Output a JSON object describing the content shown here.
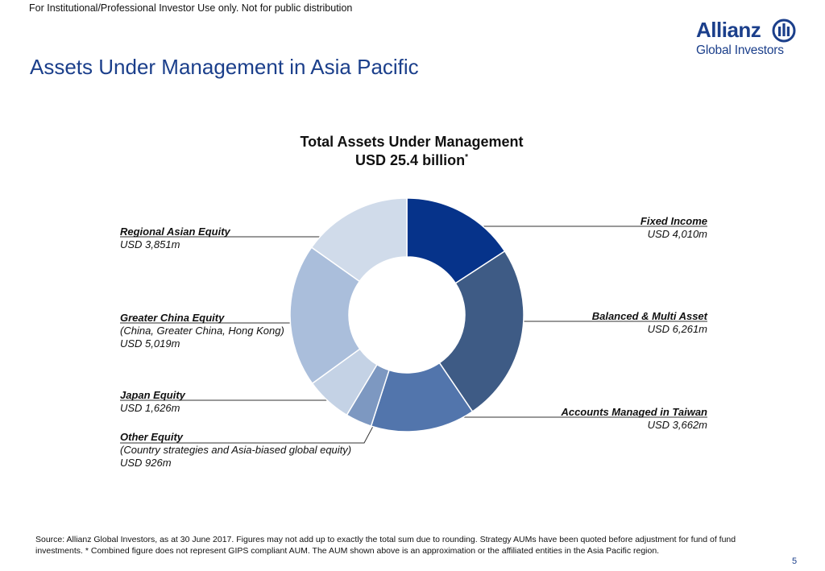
{
  "header": {
    "disclaimer": "For Institutional/Professional Investor Use only. Not for public distribution",
    "logo_word": "Allianz",
    "logo_sub": "Global Investors"
  },
  "page": {
    "title": "Assets Under Management in Asia Pacific",
    "page_number": "5"
  },
  "chart_data": {
    "type": "pie",
    "donut": true,
    "title": "Total Assets Under Management",
    "subtitle": "USD 25.4 billion",
    "subtitle_mark": "*",
    "unit": "USD m",
    "slices": [
      {
        "name": "Fixed Income",
        "value": 4010,
        "label": "USD 4,010m",
        "note": "",
        "color": "#06338a"
      },
      {
        "name": "Balanced & Multi Asset",
        "value": 6261,
        "label": "USD 6,261m",
        "note": "",
        "color": "#3e5b85"
      },
      {
        "name": "Accounts Managed in Taiwan",
        "value": 3662,
        "label": "USD 3,662m",
        "note": "",
        "color": "#5275ac"
      },
      {
        "name": "Other Equity",
        "value": 926,
        "label": "USD 926m",
        "note": "(Country strategies and Asia-biased global equity)",
        "color": "#7d98c1"
      },
      {
        "name": "Japan Equity",
        "value": 1626,
        "label": "USD 1,626m",
        "note": "",
        "color": "#c4d2e5"
      },
      {
        "name": "Greater China Equity",
        "value": 5019,
        "label": "USD 5,019m",
        "note": "(China, Greater China, Hong Kong)",
        "color": "#aabedb"
      },
      {
        "name": "Regional Asian Equity",
        "value": 3851,
        "label": "USD 3,851m",
        "note": "",
        "color": "#d0dbea"
      }
    ]
  },
  "footer": {
    "source": "Source: Allianz Global Investors, as at 30 June 2017. Figures may not add up to exactly the total sum due to rounding. Strategy AUMs have been quoted before adjustment for fund of fund investments. * Combined figure does not represent GIPS compliant AUM. The AUM shown above is an approximation or the affiliated entities in the Asia Pacific region."
  },
  "colors": {
    "brand": "#1b3f8b"
  }
}
